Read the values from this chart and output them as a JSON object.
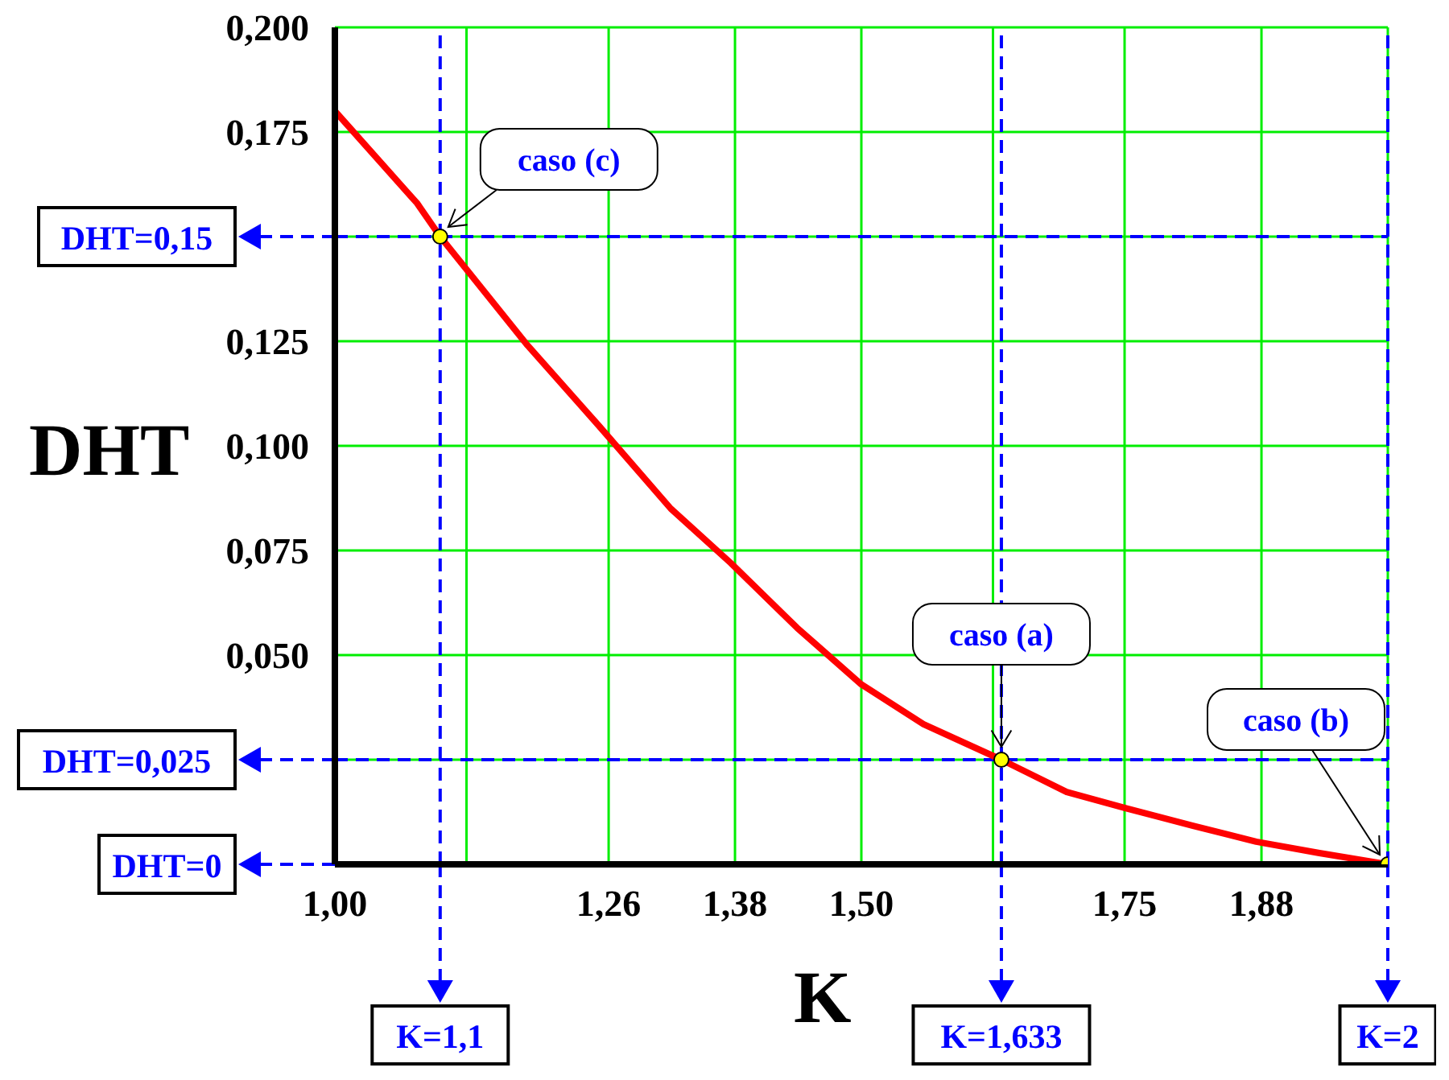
{
  "chart_data": {
    "type": "line",
    "xlabel": "K",
    "ylabel": "DHT",
    "xlim": [
      1,
      2
    ],
    "xticks": [
      {
        "value": 1,
        "label": "1,00"
      },
      {
        "value": 1.125,
        "label": null
      },
      {
        "value": 1.26,
        "label": "1,26"
      },
      {
        "value": 1.38,
        "label": "1,38"
      },
      {
        "value": 1.5,
        "label": "1,50"
      },
      {
        "value": 1.625,
        "label": null
      },
      {
        "value": 1.75,
        "label": "1,75"
      },
      {
        "value": 1.88,
        "label": "1,88"
      },
      {
        "value": 2,
        "label": null
      }
    ],
    "ylim": [
      0,
      0.2
    ],
    "yticks": [
      {
        "value": 0,
        "label": null
      },
      {
        "value": 0.025,
        "label": null
      },
      {
        "value": 0.05,
        "label": "0,050"
      },
      {
        "value": 0.075,
        "label": "0,075"
      },
      {
        "value": 0.1,
        "label": "0,100"
      },
      {
        "value": 0.125,
        "label": "0,125"
      },
      {
        "value": 0.15,
        "label": null
      },
      {
        "value": 0.175,
        "label": "0,175"
      },
      {
        "value": 0.2,
        "label": "0,200"
      }
    ],
    "grid": true,
    "series": [
      {
        "color": "#ff0000",
        "marker": "none",
        "x": [
          1,
          1.078,
          1.1,
          1.183,
          1.25,
          1.319,
          1.376,
          1.439,
          1.5,
          1.559,
          1.633,
          1.695,
          1.75,
          1.815,
          1.875,
          1.935,
          2
        ],
        "values": [
          0.18,
          0.158,
          0.15,
          0.124,
          0.105,
          0.085,
          0.072,
          0.0565,
          0.043,
          0.0335,
          0.025,
          0.0173,
          0.0135,
          0.0092,
          0.0054,
          0.0027,
          0
        ]
      },
      {
        "type": "scatter",
        "color": "#ffff00",
        "marker": "circle",
        "x": [
          1.1,
          1.633,
          2
        ],
        "values": [
          0.15,
          0.025,
          0
        ]
      }
    ],
    "ref_lines": [
      {
        "axis": "y",
        "value": 0.15,
        "label": "DHT=0,15",
        "color": "#0000ff",
        "line_style": "dashed"
      },
      {
        "axis": "y",
        "value": 0.025,
        "label": "DHT=0,025",
        "color": "#0000ff",
        "line_style": "dashed"
      },
      {
        "axis": "y",
        "value": 0,
        "label": "DHT=0",
        "color": "#0000ff",
        "line_style": "dashed"
      },
      {
        "axis": "x",
        "value": 1.1,
        "label": "K=1,1",
        "color": "#0000ff",
        "line_style": "dashed"
      },
      {
        "axis": "x",
        "value": 1.633,
        "label": "K=1,633",
        "color": "#0000ff",
        "line_style": "dashed"
      },
      {
        "axis": "x",
        "value": 2,
        "label": "K=2",
        "color": "#0000ff",
        "line_style": "dashed"
      }
    ],
    "annotations": [
      {
        "text": "caso (c)",
        "x": 1.1,
        "y": 0.15
      },
      {
        "text": "caso (a)",
        "x": 1.633,
        "y": 0.025
      },
      {
        "text": "caso (b)",
        "x": 2,
        "y": 0
      }
    ]
  }
}
